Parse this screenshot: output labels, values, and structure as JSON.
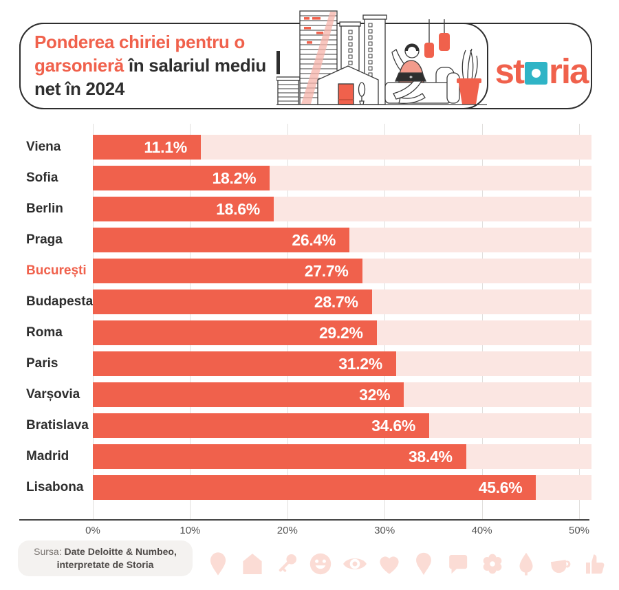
{
  "header": {
    "title": {
      "lines": [
        {
          "red": "Ponderea chiriei pentru o",
          "dark": ""
        },
        {
          "red": "garsonieră",
          "dark": " în salariul mediu"
        },
        {
          "red": "",
          "dark": "net în 2024"
        }
      ]
    },
    "logo": {
      "part1": "st",
      "part2": "ria",
      "square_color": "#2fb4c6",
      "text_color": "#f0614c"
    }
  },
  "chart_data": {
    "type": "bar",
    "orientation": "horizontal",
    "title": "Ponderea chiriei pentru o garsonieră în salariul mediu net în 2024",
    "categories": [
      "Viena",
      "Sofia",
      "Berlin",
      "Praga",
      "București",
      "Budapesta",
      "Roma",
      "Paris",
      "Varșovia",
      "Bratislava",
      "Madrid",
      "Lisabona"
    ],
    "values": [
      11.1,
      18.2,
      18.6,
      26.4,
      27.7,
      28.7,
      29.2,
      31.2,
      32,
      34.6,
      38.4,
      45.6
    ],
    "value_labels": [
      "11.1%",
      "18.2%",
      "18.6%",
      "26.4%",
      "27.7%",
      "28.7%",
      "29.2%",
      "31.2%",
      "32%",
      "34.6%",
      "38.4%",
      "45.6%"
    ],
    "highlighted_category": "București",
    "x_ticks": [
      "0%",
      "10%",
      "20%",
      "30%",
      "40%",
      "50%"
    ],
    "x_tick_values": [
      0,
      10,
      20,
      30,
      40,
      50
    ],
    "xlim": [
      0,
      51.3
    ],
    "grid": true,
    "legend": "none",
    "bar_color": "#f0614c",
    "track_color": "#fbe6e2",
    "highlight_label_color": "#f0614c",
    "label_color": "#2e2e2e",
    "value_label_color": "#ffffff"
  },
  "footer": {
    "source_prefix": "Sursa:",
    "source_bold_line1": "Date Deloitte & Numbeo,",
    "source_bold_line2": "interpretate de Storia",
    "icons": [
      "location-pin-icon",
      "house-icon",
      "key-icon",
      "smiley-icon",
      "eye-icon",
      "heart-icon",
      "balloon-pin-icon",
      "speech-bubble-icon",
      "flower-icon",
      "tree-icon",
      "coffee-cup-icon",
      "thumbs-up-icon"
    ],
    "icons_color": "#fbdcd5"
  }
}
